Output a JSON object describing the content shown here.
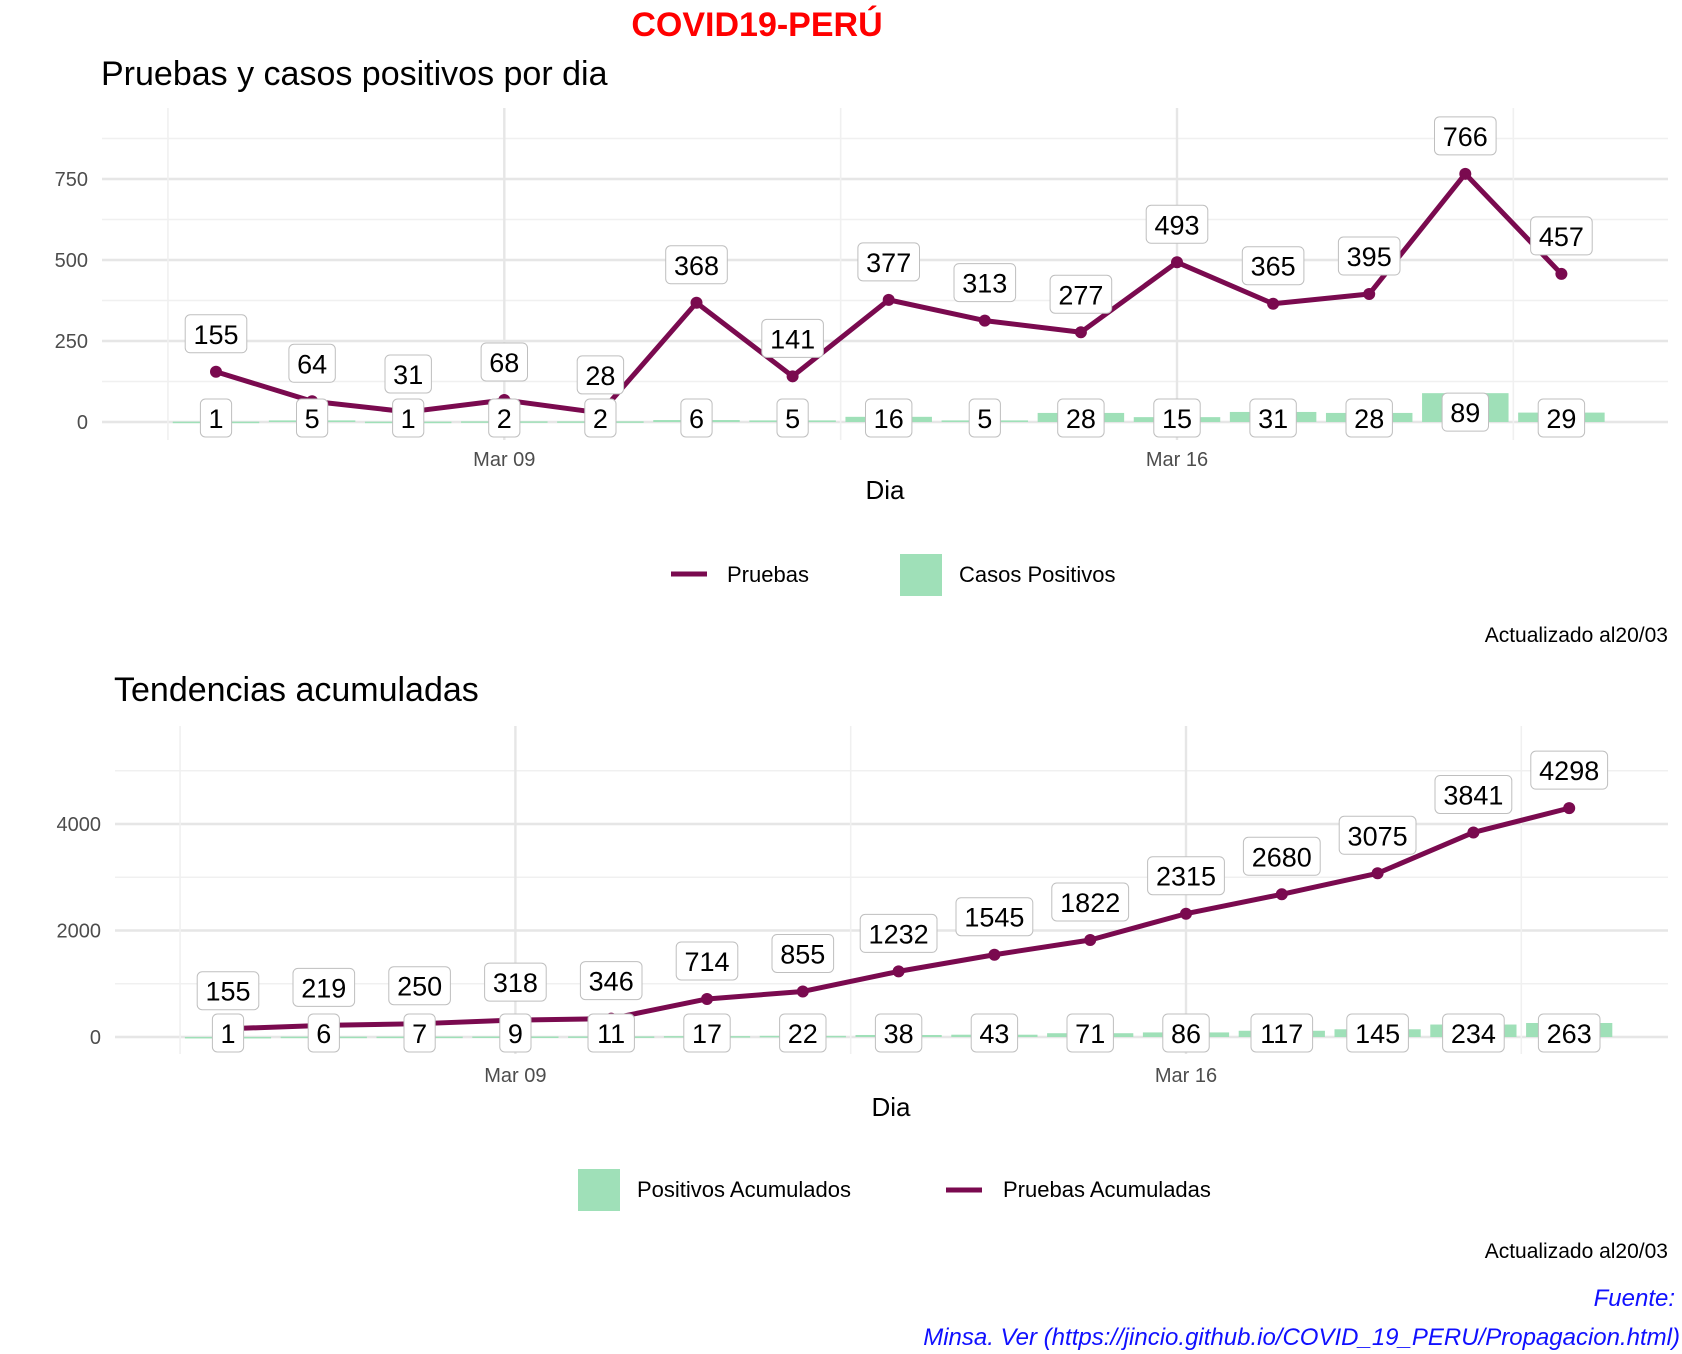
{
  "title": "COVID19-PERÚ",
  "caption": "Actualizado al20/03",
  "source_line1": "Fuente:",
  "source_line2": "Minsa. Ver (https://jincio.github.io/COVID_19_PERU/Propagacion.html)",
  "colors": {
    "title": "#ff0000",
    "line": "#7a0a4f",
    "bar": "#9fe0b8",
    "source": "#1010ff"
  },
  "chart_data": [
    {
      "type": "bar+line",
      "title": "Pruebas y casos positivos por dia",
      "xlabel": "Dia",
      "x": [
        "Mar 06",
        "Mar 07",
        "Mar 08",
        "Mar 09",
        "Mar 10",
        "Mar 11",
        "Mar 12",
        "Mar 13",
        "Mar 14",
        "Mar 15",
        "Mar 16",
        "Mar 17",
        "Mar 18",
        "Mar 19",
        "Mar 20"
      ],
      "x_ticks": [
        "Mar 09",
        "Mar 16"
      ],
      "y_ticks": [
        0,
        250,
        500,
        750
      ],
      "ylim": [
        -30,
        880
      ],
      "series": [
        {
          "name": "Pruebas",
          "kind": "line",
          "values": [
            155,
            64,
            31,
            68,
            28,
            368,
            141,
            377,
            313,
            277,
            493,
            365,
            395,
            766,
            457
          ]
        },
        {
          "name": "Casos Positivos",
          "kind": "bar",
          "values": [
            1,
            5,
            1,
            2,
            2,
            6,
            5,
            16,
            5,
            28,
            15,
            31,
            28,
            89,
            29
          ]
        }
      ],
      "legend": [
        "Pruebas",
        "Casos Positivos"
      ],
      "legend_position": "bottom"
    },
    {
      "type": "bar+line",
      "title": "Tendencias acumuladas",
      "xlabel": "Dia",
      "x": [
        "Mar 06",
        "Mar 07",
        "Mar 08",
        "Mar 09",
        "Mar 10",
        "Mar 11",
        "Mar 12",
        "Mar 13",
        "Mar 14",
        "Mar 15",
        "Mar 16",
        "Mar 17",
        "Mar 18",
        "Mar 19",
        "Mar 20"
      ],
      "x_ticks": [
        "Mar 09",
        "Mar 16"
      ],
      "y_ticks": [
        0,
        2000,
        4000
      ],
      "ylim": [
        -200,
        5050
      ],
      "series": [
        {
          "name": "Pruebas Acumuladas",
          "kind": "line",
          "values": [
            155,
            219,
            250,
            318,
            346,
            714,
            855,
            1232,
            1545,
            1822,
            2315,
            2680,
            3075,
            3841,
            4298
          ]
        },
        {
          "name": "Positivos Acumulados",
          "kind": "bar",
          "values": [
            1,
            6,
            7,
            9,
            11,
            17,
            22,
            38,
            43,
            71,
            86,
            117,
            145,
            234,
            263
          ]
        }
      ],
      "legend": [
        "Positivos Acumulados",
        "Pruebas Acumuladas"
      ],
      "legend_position": "bottom"
    }
  ]
}
